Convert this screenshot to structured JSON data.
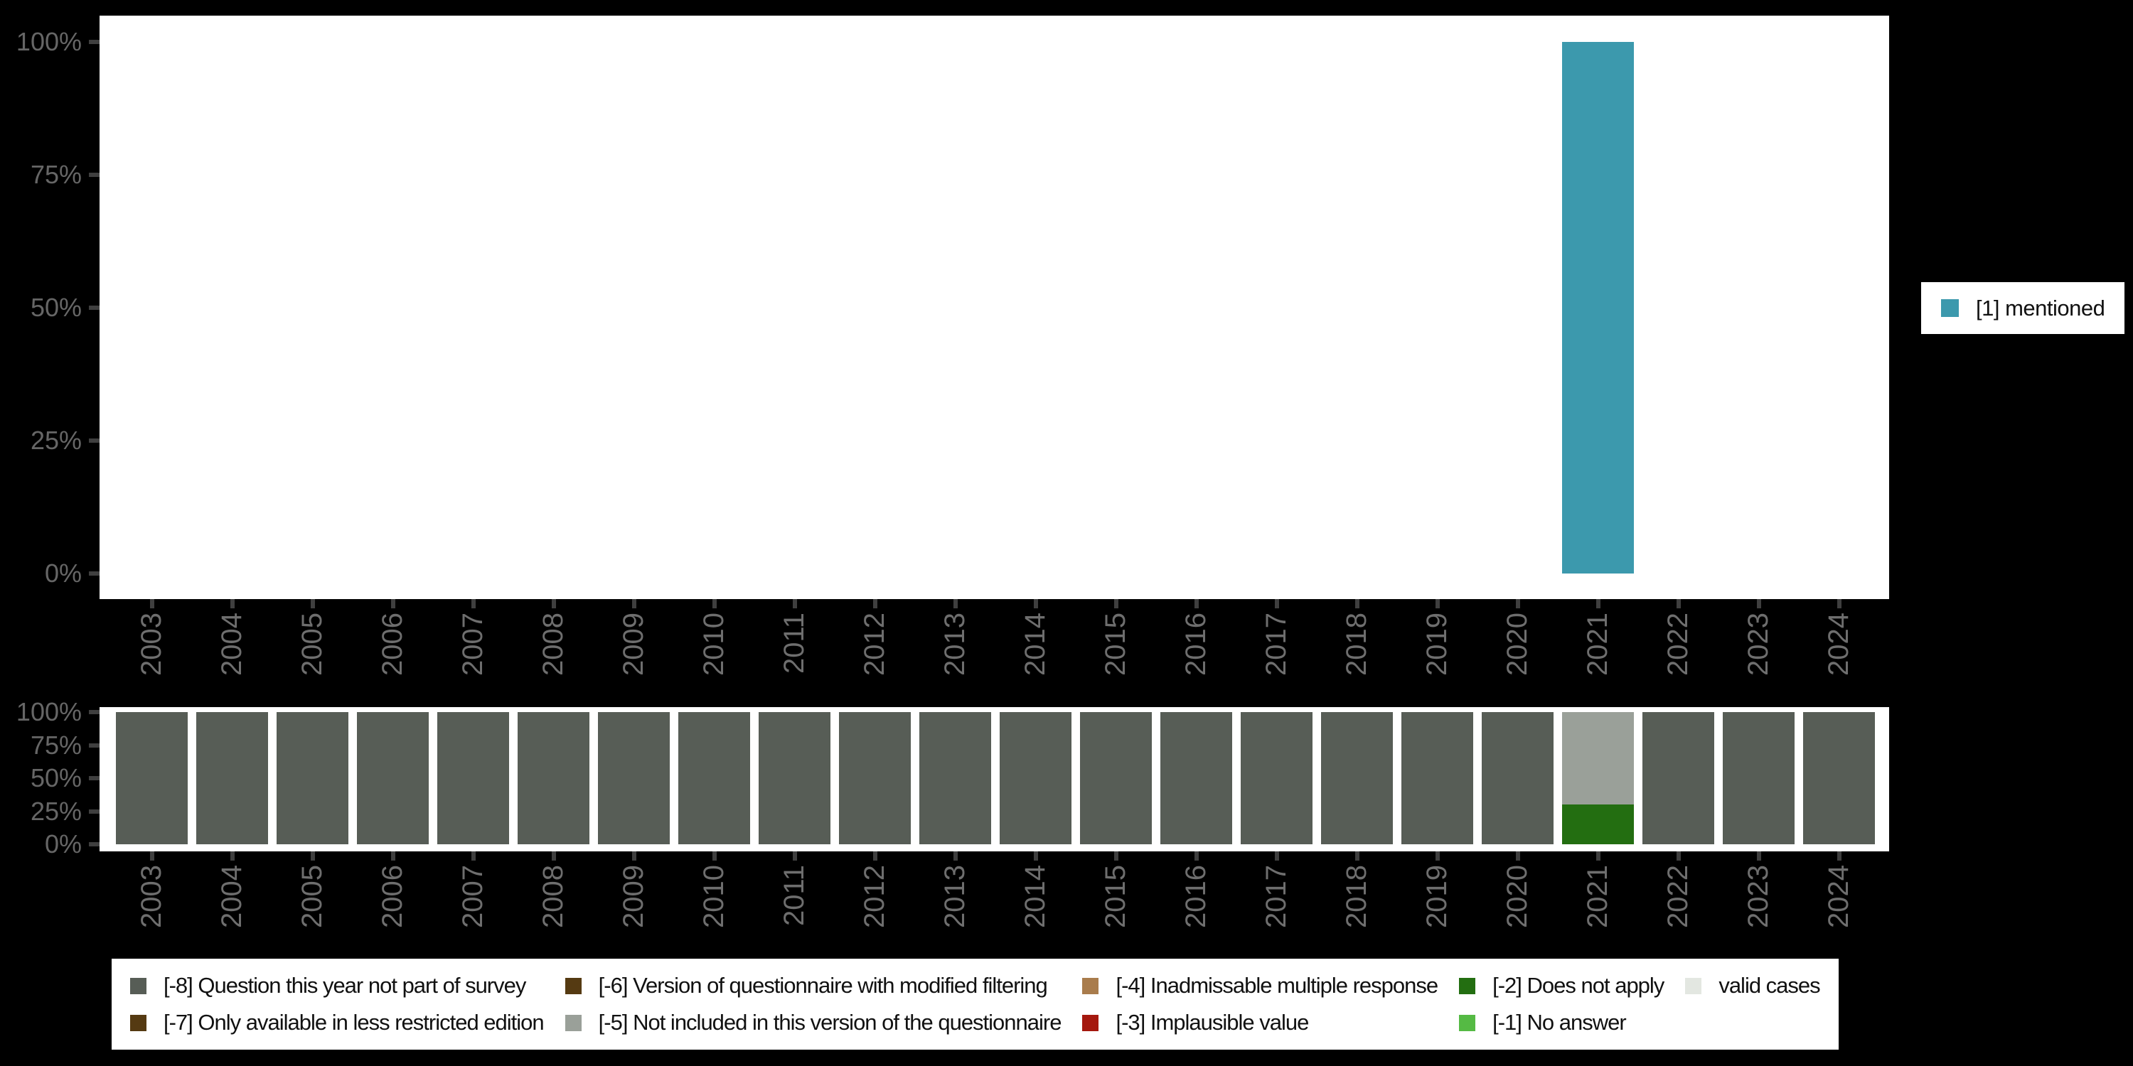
{
  "background_color": "#000000",
  "panel_color": "#ffffff",
  "axis": {
    "tick_color": "#3F3F3F",
    "percent_label_color": "#666666",
    "year_label_color": "#6E6E6E",
    "y_tick_values": [
      0,
      25,
      50,
      75,
      100
    ],
    "y_tick_labels": [
      "0%",
      "25%",
      "50%",
      "75%",
      "100%"
    ]
  },
  "chart_data": [
    {
      "type": "bar",
      "title": "",
      "xlabel": "",
      "ylabel": "",
      "ylim": [
        0,
        100
      ],
      "grid": false,
      "legend_position": "right",
      "y_tick_labels": [
        "0%",
        "25%",
        "50%",
        "75%",
        "100%"
      ],
      "categories": [
        "2003",
        "2004",
        "2005",
        "2006",
        "2007",
        "2008",
        "2009",
        "2010",
        "2011",
        "2012",
        "2013",
        "2014",
        "2015",
        "2016",
        "2017",
        "2018",
        "2019",
        "2020",
        "2021",
        "2022",
        "2023",
        "2024"
      ],
      "series": [
        {
          "name": "[1] mentioned",
          "color": "#3C99AD",
          "values": [
            0,
            0,
            0,
            0,
            0,
            0,
            0,
            0,
            0,
            0,
            0,
            0,
            0,
            0,
            0,
            0,
            0,
            0,
            100,
            0,
            0,
            0
          ]
        }
      ]
    },
    {
      "type": "stacked-bar",
      "title": "",
      "xlabel": "",
      "ylabel": "",
      "ylim": [
        0,
        100
      ],
      "grid": false,
      "legend_position": "bottom",
      "y_tick_labels": [
        "0%",
        "25%",
        "50%",
        "75%",
        "100%"
      ],
      "categories": [
        "2003",
        "2004",
        "2005",
        "2006",
        "2007",
        "2008",
        "2009",
        "2010",
        "2011",
        "2012",
        "2013",
        "2014",
        "2015",
        "2016",
        "2017",
        "2018",
        "2019",
        "2020",
        "2021",
        "2022",
        "2023",
        "2024"
      ],
      "series": [
        {
          "name": "[-8] Question this year not part of survey",
          "color": "#575D56",
          "values": [
            100,
            100,
            100,
            100,
            100,
            100,
            100,
            100,
            100,
            100,
            100,
            100,
            100,
            100,
            100,
            100,
            100,
            100,
            0,
            100,
            100,
            100
          ]
        },
        {
          "name": "[-2] Does not apply",
          "color": "#236E11",
          "values": [
            0,
            0,
            0,
            0,
            0,
            0,
            0,
            0,
            0,
            0,
            0,
            0,
            0,
            0,
            0,
            0,
            0,
            0,
            30,
            0,
            0,
            0
          ]
        },
        {
          "name": "[-5] Not included in this version of the questionnaire",
          "color": "#9AA099",
          "values": [
            0,
            0,
            0,
            0,
            0,
            0,
            0,
            0,
            0,
            0,
            0,
            0,
            0,
            0,
            0,
            0,
            0,
            0,
            70,
            0,
            0,
            0
          ]
        }
      ]
    }
  ],
  "legend_right": {
    "entries": [
      {
        "label": "[1] mentioned",
        "color": "#3C99AD"
      }
    ]
  },
  "legend_bottom": {
    "columns": [
      {
        "items": [
          {
            "label": "[-8] Question this year not part of survey",
            "color": "#575D56"
          },
          {
            "label": "[-7] Only available in less restricted edition",
            "color": "#553A12"
          }
        ]
      },
      {
        "items": [
          {
            "label": "[-6] Version of questionnaire with modified filtering",
            "color": "#553A12"
          },
          {
            "label": "[-5] Not included in this version of the questionnaire",
            "color": "#9AA099"
          }
        ]
      },
      {
        "items": [
          {
            "label": "[-4] Inadmissable multiple response",
            "color": "#A97C4C"
          },
          {
            "label": "[-3] Implausible value",
            "color": "#A5180E"
          }
        ]
      },
      {
        "items": [
          {
            "label": "[-2] Does not apply",
            "color": "#236E11"
          },
          {
            "label": "[-1] No answer",
            "color": "#55BA44"
          }
        ]
      },
      {
        "items": [
          {
            "label": "valid cases",
            "color": "#E3E7E1"
          }
        ]
      }
    ]
  }
}
